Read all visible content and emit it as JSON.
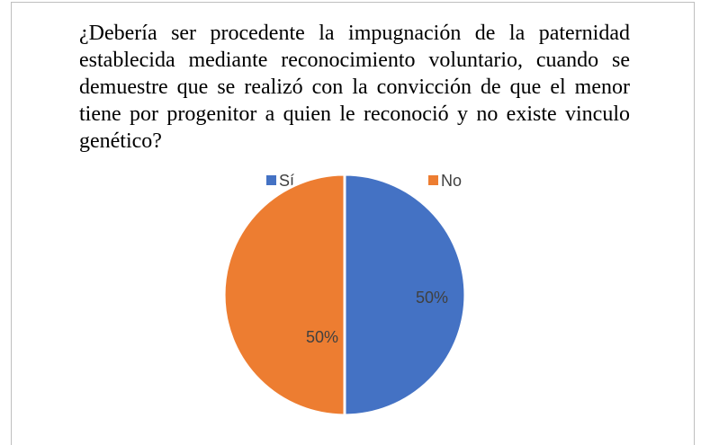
{
  "chart_data": {
    "type": "pie",
    "title": "¿Debería ser procedente la impugnación de la paternidad establecida mediante reconocimiento voluntario, cuando se demuestre que se realizó con la convicción de que el menor tiene por progenitor a quien le reconoció y no existe vinculo genético?",
    "categories": [
      "Sí",
      "No"
    ],
    "values": [
      50,
      50
    ],
    "value_labels": [
      "50%",
      "50%"
    ],
    "colors": [
      "#4472c4",
      "#ed7d31"
    ],
    "legend": "top"
  }
}
